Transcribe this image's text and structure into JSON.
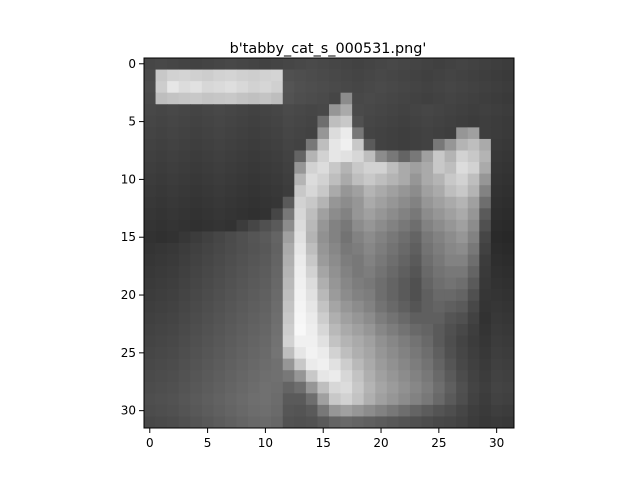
{
  "figure": {
    "title": "b'tabby_cat_s_000531.png'"
  },
  "image": {
    "description_hidden": "",
    "rows": 32,
    "cols": 32,
    "colormap": "gray",
    "pixel_grid": [
      [
        70,
        72,
        70,
        68,
        66,
        68,
        70,
        72,
        70,
        68,
        66,
        68,
        70,
        72,
        74,
        72,
        70,
        68,
        66,
        68,
        70,
        72,
        70,
        68,
        66,
        64,
        66,
        68,
        66,
        64,
        62,
        60
      ],
      [
        74,
        200,
        210,
        212,
        208,
        205,
        210,
        212,
        208,
        206,
        210,
        212,
        80,
        78,
        76,
        74,
        72,
        70,
        68,
        70,
        72,
        70,
        68,
        66,
        64,
        66,
        68,
        66,
        64,
        62,
        60,
        58
      ],
      [
        76,
        205,
        230,
        220,
        225,
        215,
        218,
        222,
        216,
        210,
        214,
        208,
        84,
        80,
        78,
        76,
        74,
        72,
        70,
        72,
        74,
        72,
        70,
        68,
        66,
        68,
        70,
        68,
        66,
        64,
        62,
        60
      ],
      [
        74,
        190,
        195,
        198,
        200,
        196,
        198,
        200,
        195,
        192,
        196,
        190,
        82,
        78,
        76,
        74,
        70,
        140,
        72,
        74,
        72,
        70,
        68,
        66,
        64,
        66,
        68,
        66,
        64,
        62,
        60,
        58
      ],
      [
        72,
        70,
        72,
        70,
        68,
        70,
        72,
        70,
        68,
        66,
        68,
        70,
        74,
        72,
        70,
        72,
        150,
        170,
        74,
        72,
        70,
        68,
        66,
        68,
        70,
        68,
        66,
        64,
        62,
        64,
        62,
        60
      ],
      [
        70,
        68,
        70,
        68,
        66,
        68,
        70,
        68,
        66,
        64,
        66,
        68,
        72,
        70,
        68,
        110,
        190,
        200,
        80,
        70,
        68,
        66,
        64,
        66,
        68,
        66,
        64,
        62,
        60,
        62,
        60,
        58
      ],
      [
        68,
        66,
        68,
        66,
        64,
        66,
        68,
        66,
        64,
        62,
        64,
        66,
        70,
        68,
        66,
        150,
        220,
        235,
        120,
        68,
        66,
        64,
        62,
        64,
        66,
        64,
        62,
        150,
        160,
        62,
        60,
        58
      ],
      [
        66,
        64,
        66,
        64,
        62,
        64,
        66,
        64,
        62,
        60,
        62,
        64,
        68,
        66,
        120,
        190,
        230,
        240,
        200,
        90,
        66,
        64,
        62,
        64,
        66,
        120,
        150,
        180,
        190,
        170,
        58,
        56
      ],
      [
        64,
        62,
        64,
        62,
        60,
        62,
        64,
        62,
        60,
        58,
        60,
        62,
        66,
        100,
        180,
        210,
        230,
        225,
        215,
        190,
        140,
        120,
        100,
        120,
        160,
        200,
        180,
        210,
        200,
        180,
        56,
        54
      ],
      [
        62,
        60,
        62,
        60,
        58,
        60,
        62,
        60,
        58,
        56,
        58,
        60,
        64,
        150,
        210,
        220,
        200,
        180,
        200,
        210,
        210,
        190,
        170,
        160,
        170,
        200,
        190,
        220,
        210,
        170,
        54,
        52
      ],
      [
        60,
        58,
        60,
        58,
        56,
        58,
        60,
        58,
        56,
        54,
        56,
        58,
        62,
        180,
        220,
        210,
        190,
        170,
        190,
        200,
        190,
        180,
        170,
        150,
        170,
        180,
        200,
        210,
        190,
        150,
        52,
        50
      ],
      [
        58,
        56,
        58,
        56,
        54,
        56,
        58,
        56,
        54,
        52,
        54,
        56,
        60,
        200,
        215,
        200,
        170,
        150,
        160,
        180,
        170,
        160,
        150,
        140,
        160,
        170,
        190,
        200,
        180,
        130,
        50,
        48
      ],
      [
        56,
        54,
        56,
        54,
        52,
        54,
        56,
        54,
        52,
        50,
        52,
        54,
        90,
        210,
        200,
        180,
        150,
        140,
        150,
        170,
        160,
        150,
        140,
        130,
        150,
        160,
        170,
        180,
        160,
        110,
        48,
        46
      ],
      [
        54,
        52,
        54,
        52,
        50,
        52,
        54,
        52,
        50,
        48,
        50,
        70,
        120,
        215,
        190,
        160,
        140,
        130,
        150,
        160,
        150,
        140,
        130,
        120,
        140,
        150,
        160,
        170,
        150,
        90,
        46,
        44
      ],
      [
        52,
        50,
        52,
        50,
        48,
        50,
        52,
        50,
        60,
        70,
        80,
        90,
        140,
        220,
        185,
        150,
        130,
        120,
        140,
        150,
        140,
        130,
        120,
        110,
        130,
        140,
        150,
        160,
        140,
        80,
        44,
        42
      ],
      [
        50,
        48,
        50,
        55,
        60,
        65,
        70,
        75,
        80,
        85,
        90,
        100,
        160,
        225,
        180,
        145,
        130,
        115,
        130,
        140,
        130,
        120,
        110,
        100,
        120,
        130,
        140,
        150,
        130,
        70,
        42,
        40
      ],
      [
        52,
        54,
        56,
        60,
        64,
        68,
        72,
        76,
        80,
        84,
        88,
        98,
        170,
        230,
        190,
        150,
        135,
        120,
        125,
        135,
        125,
        115,
        105,
        95,
        115,
        125,
        135,
        140,
        120,
        65,
        44,
        42
      ],
      [
        54,
        56,
        58,
        62,
        66,
        70,
        74,
        78,
        82,
        86,
        90,
        100,
        175,
        235,
        200,
        155,
        140,
        125,
        120,
        130,
        120,
        110,
        100,
        90,
        110,
        120,
        130,
        130,
        110,
        60,
        46,
        44
      ],
      [
        56,
        58,
        60,
        64,
        68,
        72,
        76,
        80,
        84,
        88,
        92,
        102,
        180,
        238,
        210,
        165,
        145,
        130,
        120,
        125,
        115,
        105,
        95,
        85,
        105,
        115,
        120,
        120,
        100,
        58,
        48,
        46
      ],
      [
        58,
        60,
        62,
        66,
        70,
        74,
        78,
        82,
        86,
        90,
        94,
        104,
        185,
        240,
        220,
        175,
        150,
        135,
        125,
        120,
        110,
        100,
        90,
        80,
        100,
        110,
        115,
        110,
        90,
        56,
        50,
        48
      ],
      [
        60,
        62,
        64,
        68,
        72,
        76,
        80,
        84,
        88,
        92,
        96,
        106,
        190,
        242,
        225,
        185,
        155,
        140,
        130,
        125,
        110,
        100,
        90,
        80,
        95,
        105,
        105,
        100,
        80,
        54,
        52,
        50
      ],
      [
        62,
        64,
        66,
        70,
        74,
        78,
        82,
        86,
        90,
        94,
        98,
        108,
        195,
        244,
        230,
        195,
        165,
        150,
        140,
        130,
        115,
        105,
        95,
        85,
        95,
        100,
        95,
        90,
        72,
        52,
        54,
        52
      ],
      [
        64,
        66,
        68,
        72,
        76,
        80,
        84,
        88,
        92,
        96,
        100,
        110,
        200,
        246,
        235,
        205,
        175,
        160,
        150,
        140,
        125,
        115,
        105,
        95,
        95,
        95,
        85,
        80,
        66,
        50,
        56,
        54
      ],
      [
        66,
        68,
        70,
        74,
        78,
        82,
        86,
        90,
        94,
        98,
        102,
        112,
        205,
        248,
        238,
        215,
        185,
        170,
        160,
        150,
        135,
        125,
        115,
        105,
        100,
        90,
        80,
        72,
        62,
        52,
        58,
        56
      ],
      [
        68,
        70,
        72,
        76,
        80,
        84,
        88,
        92,
        96,
        100,
        104,
        114,
        210,
        240,
        240,
        225,
        195,
        180,
        170,
        160,
        145,
        135,
        125,
        115,
        105,
        90,
        78,
        68,
        60,
        54,
        60,
        58
      ],
      [
        70,
        72,
        74,
        78,
        82,
        86,
        90,
        94,
        98,
        102,
        106,
        116,
        190,
        230,
        242,
        235,
        210,
        190,
        175,
        165,
        150,
        140,
        130,
        120,
        110,
        95,
        80,
        70,
        62,
        56,
        62,
        60
      ],
      [
        72,
        74,
        76,
        80,
        84,
        88,
        92,
        96,
        100,
        104,
        108,
        112,
        150,
        200,
        235,
        240,
        225,
        205,
        185,
        170,
        155,
        145,
        135,
        125,
        115,
        100,
        85,
        72,
        64,
        58,
        64,
        62
      ],
      [
        74,
        76,
        78,
        82,
        86,
        90,
        94,
        98,
        102,
        106,
        110,
        112,
        120,
        150,
        200,
        230,
        235,
        215,
        195,
        175,
        160,
        150,
        140,
        130,
        120,
        105,
        90,
        76,
        66,
        60,
        66,
        64
      ],
      [
        76,
        78,
        80,
        84,
        88,
        92,
        96,
        100,
        104,
        108,
        112,
        110,
        100,
        110,
        150,
        190,
        215,
        220,
        200,
        180,
        165,
        155,
        145,
        135,
        125,
        110,
        95,
        80,
        68,
        62,
        68,
        66
      ],
      [
        78,
        80,
        82,
        86,
        90,
        94,
        98,
        102,
        106,
        110,
        112,
        108,
        90,
        90,
        110,
        160,
        200,
        210,
        195,
        175,
        160,
        150,
        140,
        130,
        120,
        105,
        90,
        78,
        66,
        60,
        66,
        64
      ],
      [
        76,
        78,
        80,
        84,
        88,
        92,
        96,
        100,
        104,
        108,
        110,
        106,
        86,
        84,
        90,
        120,
        150,
        160,
        150,
        140,
        130,
        120,
        110,
        100,
        92,
        84,
        78,
        70,
        62,
        58,
        62,
        60
      ],
      [
        72,
        74,
        76,
        80,
        84,
        88,
        92,
        96,
        100,
        104,
        106,
        102,
        82,
        80,
        82,
        90,
        100,
        104,
        100,
        96,
        92,
        88,
        84,
        80,
        76,
        72,
        70,
        66,
        60,
        56,
        58,
        56
      ]
    ]
  },
  "axes": {
    "xticks": [
      0,
      5,
      10,
      15,
      20,
      25,
      30
    ],
    "yticks": [
      0,
      5,
      10,
      15,
      20,
      25,
      30
    ],
    "xlim": [
      -0.5,
      31.5
    ],
    "ylim": [
      31.5,
      -0.5
    ]
  }
}
